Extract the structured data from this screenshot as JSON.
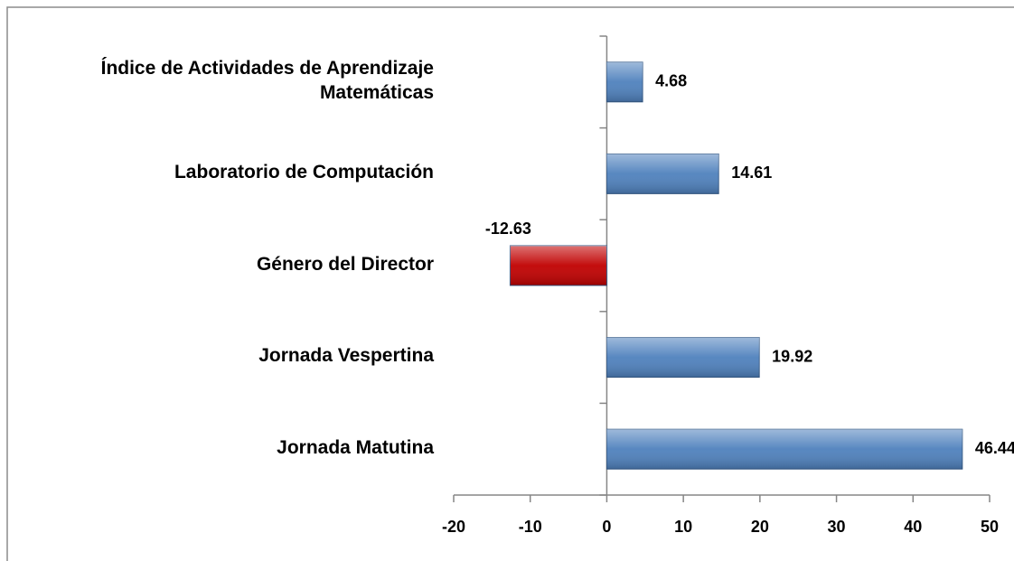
{
  "chart_data": {
    "type": "bar",
    "orientation": "horizontal",
    "categories": [
      "Índice de Actividades de Aprendizaje Matemáticas",
      "Laboratorio de Computación",
      "Género del Director",
      "Jornada Vespertina",
      "Jornada Matutina"
    ],
    "values": [
      4.68,
      14.61,
      -12.63,
      19.92,
      46.44
    ],
    "colors": [
      "#4f81bd",
      "#4f81bd",
      "#c00000",
      "#4f81bd",
      "#4f81bd"
    ],
    "xlim": [
      -20,
      50
    ],
    "xticks": [
      -20,
      -10,
      0,
      10,
      20,
      30,
      40,
      50
    ],
    "grid": false
  }
}
